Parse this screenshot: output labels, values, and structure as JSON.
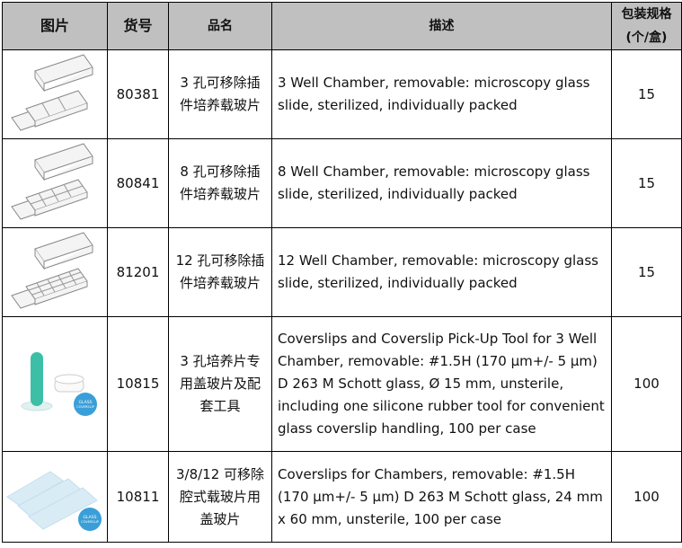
{
  "headers": {
    "image": "图片",
    "sku": "货号",
    "name": "品名",
    "description": "描述",
    "pack_line1": "包装规格",
    "pack_line2": "(个/盒)"
  },
  "rows": [
    {
      "image_icon": "3-well-chamber-slide",
      "sku": "80381",
      "name": "3 孔可移除插件培养载玻片",
      "description": "3 Well Chamber, removable: microscopy glass slide, sterilized, individually packed",
      "pack": "15"
    },
    {
      "image_icon": "8-well-chamber-slide",
      "sku": "80841",
      "name": "8 孔可移除插件培养载玻片",
      "description": "8 Well Chamber, removable: microscopy glass slide, sterilized, individually packed",
      "pack": "15"
    },
    {
      "image_icon": "12-well-chamber-slide",
      "sku": "81201",
      "name": "12 孔可移除插件培养载玻片",
      "description": "12 Well Chamber, removable: microscopy glass slide, sterilized, individually packed",
      "pack": "15"
    },
    {
      "image_icon": "coverslip-pickup-tool",
      "badge": "GLASS COVERSLIP",
      "sku": "10815",
      "name": "3 孔培养片专用盖玻片及配套工具",
      "description": "Coverslips and Coverslip Pick-Up Tool for 3 Well Chamber, removable: #1.5H (170 µm+/- 5 µm) D 263 M Schott glass, Ø 15 mm, unsterile, including one silicone rubber tool for convenient glass coverslip handling, 100 per case",
      "pack": "100"
    },
    {
      "image_icon": "coverslips",
      "badge": "GLASS COVERSLIP",
      "sku": "10811",
      "name": "3/8/12 可移除腔式载玻片用盖玻片",
      "description": "Coverslips for Chambers, removable: #1.5H (170 µm+/- 5 µm) D 263 M Schott glass, 24 mm x 60 mm, unsterile, 100 per case",
      "pack": "100"
    }
  ],
  "colors": {
    "header_bg": "#c0c0c0",
    "tool": "#3cbfa6",
    "badge": "#3a9fd8"
  }
}
